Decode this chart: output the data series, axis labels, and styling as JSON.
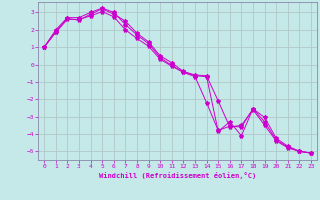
{
  "xlabel": "Windchill (Refroidissement éolien,°C)",
  "xlim": [
    -0.5,
    23.5
  ],
  "ylim": [
    -5.5,
    3.6
  ],
  "yticks": [
    3,
    2,
    1,
    0,
    -1,
    -2,
    -3,
    -4,
    -5
  ],
  "xticks": [
    0,
    1,
    2,
    3,
    4,
    5,
    6,
    7,
    8,
    9,
    10,
    11,
    12,
    13,
    14,
    15,
    16,
    17,
    18,
    19,
    20,
    21,
    22,
    23
  ],
  "bg_color": "#c5e8e8",
  "grid_color": "#b0c8c8",
  "line_color": "#cc00cc",
  "line1_x": [
    0,
    1,
    2,
    3,
    4,
    5,
    6,
    7,
    8,
    9,
    10,
    11,
    12,
    13,
    14,
    15,
    16,
    17,
    18,
    19,
    20,
    21,
    22,
    23
  ],
  "line1_y": [
    1.0,
    1.9,
    2.65,
    2.55,
    2.9,
    3.2,
    2.9,
    2.5,
    1.8,
    1.3,
    0.5,
    0.1,
    -0.4,
    -0.6,
    -0.65,
    -2.1,
    -3.6,
    -3.5,
    -2.6,
    -3.5,
    -4.4,
    -4.8,
    -5.0,
    -5.1
  ],
  "line2_x": [
    0,
    1,
    2,
    3,
    4,
    5,
    6,
    7,
    8,
    9,
    10,
    11,
    12,
    13,
    14,
    15,
    16,
    17,
    18,
    19,
    20,
    21,
    22,
    23
  ],
  "line2_y": [
    1.0,
    2.0,
    2.7,
    2.7,
    3.0,
    3.25,
    3.0,
    2.3,
    1.7,
    1.2,
    0.4,
    -0.05,
    -0.45,
    -0.65,
    -0.7,
    -3.85,
    -3.3,
    -4.1,
    -2.55,
    -3.3,
    -4.35,
    -4.75,
    -5.0,
    -5.1
  ],
  "line3_x": [
    0,
    1,
    2,
    3,
    4,
    5,
    6,
    7,
    8,
    9,
    10,
    11,
    12,
    13,
    14,
    15,
    16,
    17,
    18,
    19,
    20,
    21,
    22,
    23
  ],
  "line3_y": [
    1.0,
    1.85,
    2.6,
    2.6,
    2.8,
    3.05,
    2.75,
    2.0,
    1.5,
    1.05,
    0.3,
    -0.1,
    -0.45,
    -0.7,
    -2.2,
    -3.8,
    -3.55,
    -3.6,
    -2.55,
    -3.05,
    -4.25,
    -4.7,
    -5.0,
    -5.1
  ]
}
